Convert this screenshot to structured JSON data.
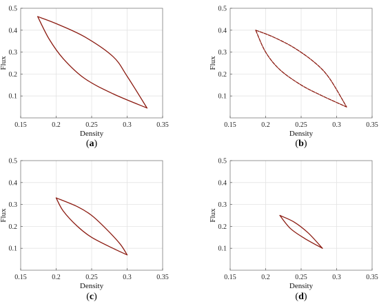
{
  "chart_data": [
    {
      "type": "line",
      "panel_label": "a",
      "xlabel": "Density",
      "ylabel": "Flux",
      "xlim": [
        0.15,
        0.35
      ],
      "ylim": [
        0,
        0.5
      ],
      "xticks": [
        "0.15",
        "0.2",
        "0.25",
        "0.3",
        "0.35"
      ],
      "yticks": [
        "0.1",
        "0.2",
        "0.3",
        "0.4",
        "0.5"
      ],
      "grid": true,
      "line_color": "#8b1a10",
      "line_style": "solid",
      "series": [
        {
          "x": [
            0.174,
            0.2,
            0.24,
            0.28,
            0.3,
            0.328
          ],
          "y": [
            0.462,
            0.43,
            0.37,
            0.28,
            0.19,
            0.045
          ]
        },
        {
          "x": [
            0.174,
            0.19,
            0.21,
            0.24,
            0.28,
            0.328
          ],
          "y": [
            0.462,
            0.36,
            0.27,
            0.18,
            0.11,
            0.045
          ]
        }
      ]
    },
    {
      "type": "line",
      "panel_label": "b",
      "xlabel": "Density",
      "ylabel": "Flux",
      "xlim": [
        0.15,
        0.35
      ],
      "ylim": [
        0,
        0.5
      ],
      "xticks": [
        "0.15",
        "0.2",
        "0.25",
        "0.3",
        "0.35"
      ],
      "yticks": [
        "0.1",
        "0.2",
        "0.3",
        "0.4",
        "0.5"
      ],
      "grid": true,
      "line_color": "#8b1a10",
      "line_style": "dashed",
      "series": [
        {
          "x": [
            0.186,
            0.21,
            0.24,
            0.27,
            0.29,
            0.314
          ],
          "y": [
            0.4,
            0.37,
            0.32,
            0.25,
            0.18,
            0.05
          ]
        },
        {
          "x": [
            0.186,
            0.2,
            0.22,
            0.25,
            0.28,
            0.314
          ],
          "y": [
            0.4,
            0.3,
            0.22,
            0.15,
            0.1,
            0.05
          ]
        }
      ]
    },
    {
      "type": "line",
      "panel_label": "c",
      "xlabel": "Density",
      "ylabel": "Flux",
      "xlim": [
        0.15,
        0.35
      ],
      "ylim": [
        0,
        0.5
      ],
      "xticks": [
        "0.15",
        "0.2",
        "0.25",
        "0.3",
        "0.35"
      ],
      "yticks": [
        "0.1",
        "0.2",
        "0.3",
        "0.4",
        "0.5"
      ],
      "grid": true,
      "line_color": "#8b1a10",
      "line_style": "solid",
      "series": [
        {
          "x": [
            0.2,
            0.23,
            0.25,
            0.27,
            0.29,
            0.3
          ],
          "y": [
            0.33,
            0.29,
            0.25,
            0.19,
            0.12,
            0.07
          ]
        },
        {
          "x": [
            0.2,
            0.21,
            0.23,
            0.25,
            0.28,
            0.3
          ],
          "y": [
            0.33,
            0.27,
            0.2,
            0.15,
            0.1,
            0.07
          ]
        }
      ]
    },
    {
      "type": "line",
      "panel_label": "d",
      "xlabel": "Density",
      "ylabel": "Flux",
      "xlim": [
        0.15,
        0.35
      ],
      "ylim": [
        0,
        0.5
      ],
      "xticks": [
        "0.15",
        "0.2",
        "0.25",
        "0.3",
        "0.35"
      ],
      "yticks": [
        "0.1",
        "0.2",
        "0.3",
        "0.4",
        "0.5"
      ],
      "grid": true,
      "line_color": "#8b1a10",
      "line_style": "solid",
      "series": [
        {
          "x": [
            0.22,
            0.24,
            0.26,
            0.28
          ],
          "y": [
            0.25,
            0.22,
            0.17,
            0.1
          ]
        },
        {
          "x": [
            0.22,
            0.235,
            0.255,
            0.28
          ],
          "y": [
            0.25,
            0.19,
            0.145,
            0.1
          ]
        }
      ]
    }
  ]
}
